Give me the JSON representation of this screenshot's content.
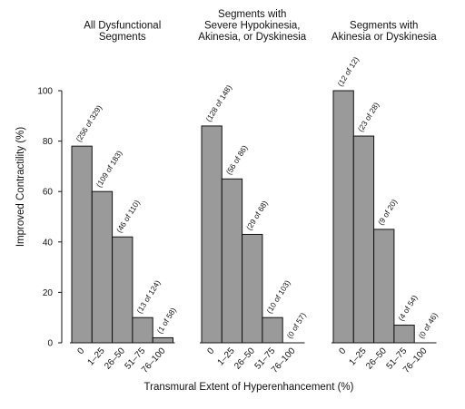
{
  "chart_data": {
    "type": "bar",
    "ylabel": "Improved Contractility (%)",
    "xlabel": "Transmural Extent of Hyperenhancement (%)",
    "ylim": [
      0,
      100
    ],
    "yticks": [
      "0",
      "20",
      "40",
      "60",
      "80",
      "100"
    ],
    "categories": [
      "0",
      "1–25",
      "26–50",
      "51–75",
      "76–100"
    ],
    "panels": [
      {
        "title_lines": [
          "All Dysfunctional",
          "Segments"
        ],
        "values": [
          78,
          60,
          42,
          10,
          2
        ],
        "labels": [
          "(256 of 329)",
          "(109 of 183)",
          "(46 of 110)",
          "(13 of 124)",
          "(1 of 58)"
        ]
      },
      {
        "title_lines": [
          "Segments with",
          "Severe Hypokinesia,",
          "Akinesia, or Dyskinesia"
        ],
        "values": [
          86,
          65,
          43,
          10,
          0
        ],
        "labels": [
          "(128 of 148)",
          "(56 of 86)",
          "(29 of 68)",
          "(10 of 103)",
          "(0 of 57)"
        ]
      },
      {
        "title_lines": [
          "Segments with",
          "Akinesia or Dyskinesia"
        ],
        "values": [
          100,
          82,
          45,
          7,
          0
        ],
        "labels": [
          "(12 of 12)",
          "(23 of 28)",
          "(9 of 20)",
          "(4 of 54)",
          "(0 of 46)"
        ]
      }
    ]
  }
}
